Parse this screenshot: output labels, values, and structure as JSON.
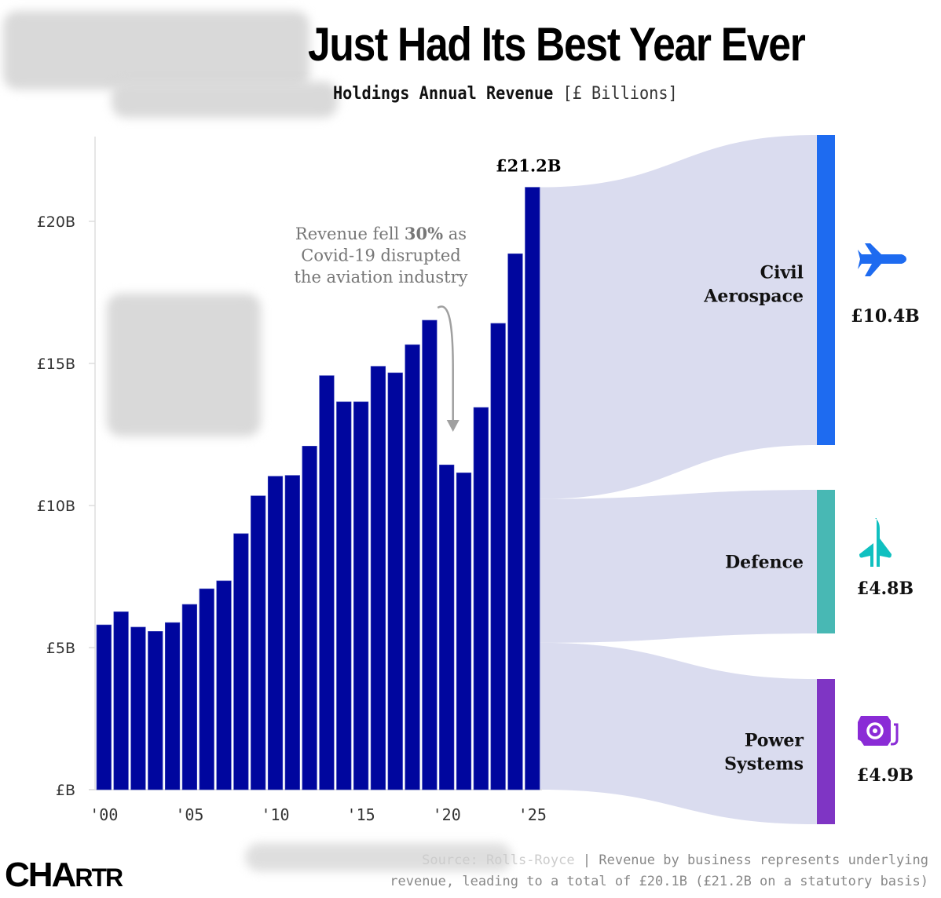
{
  "header": {
    "title": "Just Had Its Best Year Ever",
    "subtitle_bold": "Holdings Annual Revenue",
    "subtitle_unit": "[£ Billions]"
  },
  "colors": {
    "bar": "#00069e",
    "flow": "#dadcef",
    "civil_aerospace": "#1e6bf0",
    "defence": "#48b8b4",
    "power_systems": "#7f35c4",
    "defence_icon": "#10c0c0",
    "power_icon": "#8a2bd6",
    "axis": "#dddddd",
    "annotation": "#777777"
  },
  "chart_data": [
    {
      "type": "bar",
      "title": "Holdings Annual Revenue [£ Billions]",
      "xlabel": "",
      "ylabel": "",
      "ylim": [
        0,
        23
      ],
      "grid": false,
      "categories": [
        "2000",
        "2001",
        "2002",
        "2003",
        "2004",
        "2005",
        "2006",
        "2007",
        "2008",
        "2009",
        "2010",
        "2011",
        "2012",
        "2013",
        "2014",
        "2015",
        "2016",
        "2017",
        "2018",
        "2019",
        "2020",
        "2021",
        "2022",
        "2023",
        "2024",
        "2025"
      ],
      "values": [
        5.8,
        6.26,
        5.72,
        5.57,
        5.88,
        6.52,
        7.07,
        7.35,
        9.01,
        10.34,
        11.03,
        11.06,
        12.09,
        14.57,
        13.65,
        13.65,
        14.9,
        14.67,
        15.66,
        16.52,
        11.43,
        11.15,
        13.45,
        16.41,
        18.86,
        21.2
      ],
      "y_ticks": [
        {
          "value": 0,
          "label": "£B"
        },
        {
          "value": 5,
          "label": "£5B"
        },
        {
          "value": 10,
          "label": "£10B"
        },
        {
          "value": 15,
          "label": "£15B"
        },
        {
          "value": 20,
          "label": "£20B"
        }
      ],
      "x_ticks": [
        {
          "index": 0,
          "label": "'00"
        },
        {
          "index": 5,
          "label": "'05"
        },
        {
          "index": 10,
          "label": "'10"
        },
        {
          "index": 15,
          "label": "'15"
        },
        {
          "index": 20,
          "label": "'20"
        },
        {
          "index": 25,
          "label": "'25"
        }
      ],
      "peak_label": "£21.2B",
      "annotation": {
        "lines": [
          [
            {
              "text": "Revenue fell ",
              "bold": false
            },
            {
              "text": "30%",
              "bold": true
            },
            {
              "text": " as",
              "bold": false
            }
          ],
          [
            {
              "text": "Covid-19 disrupted",
              "bold": false
            }
          ],
          [
            {
              "text": "the aviation industry",
              "bold": false
            }
          ]
        ],
        "arrow_from_index": 19,
        "arrow_to_index": 20
      }
    },
    {
      "type": "sankey",
      "source": "2025 revenue",
      "total": 20.1,
      "segments": [
        {
          "name": "Civil Aerospace",
          "lines": [
            "Civil",
            "Aerospace"
          ],
          "value": 10.4,
          "label": "£10.4B",
          "icon": "airplane-icon",
          "color_key": "civil_aerospace"
        },
        {
          "name": "Defence",
          "lines": [
            "Defence"
          ],
          "value": 4.8,
          "label": "£4.8B",
          "icon": "jet-icon",
          "color_key": "defence"
        },
        {
          "name": "Power Systems",
          "lines": [
            "Power",
            "Systems"
          ],
          "value": 4.9,
          "label": "£4.9B",
          "icon": "engine-icon",
          "color_key": "power_systems"
        }
      ]
    }
  ],
  "footer": {
    "source": "Source: Rolls-Royce",
    "separator": "|",
    "note_line1": "Revenue by business represents underlying",
    "note_line2": "revenue, leading to a total of £20.1B (£21.2B on a statutory basis)"
  },
  "logo": {
    "big": "CHA",
    "small": "RTR"
  }
}
